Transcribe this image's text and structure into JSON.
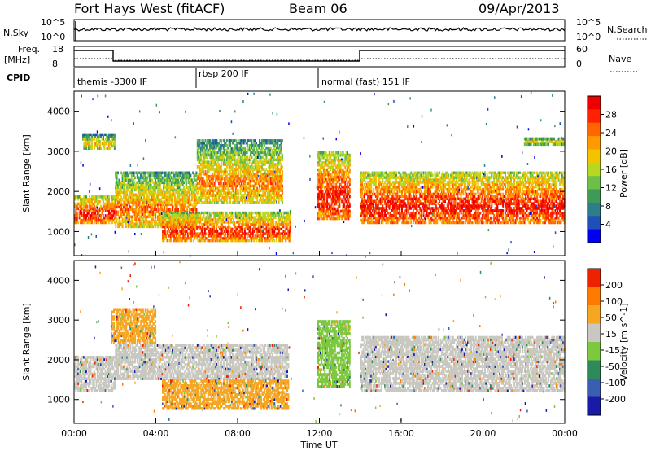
{
  "header": {
    "station": "Fort Hays West (fitACF)",
    "beam": "Beam 06",
    "date": "09/Apr/2013"
  },
  "top_panels": {
    "nsky_label": "N.Sky",
    "nsearch_label": "N.Search",
    "nsky_ticks": [
      "10^5",
      "10^0"
    ],
    "nsearch_ticks": [
      "10^5",
      "10^0"
    ],
    "freq_label": "Freq.",
    "freq_unit": "[MHz]",
    "freq_ticks": [
      "18",
      "8"
    ],
    "nave_label": "Nave",
    "nave_ticks": [
      "60",
      "0"
    ],
    "cpid_label": "CPID",
    "cpid_segments": [
      {
        "label": "themis -3300 IF",
        "start": 0.0
      },
      {
        "label": "rbsp 200 IF",
        "start": 6.0
      },
      {
        "label": "normal (fast) 151 IF",
        "start": 12.0
      }
    ]
  },
  "chart_data": [
    {
      "type": "heatmap",
      "title": "",
      "ylabel": "Slant Range [km]",
      "xlabel": "",
      "xlim": [
        0,
        24
      ],
      "ylim": [
        400,
        4500
      ],
      "yticks": [
        "1000",
        "2000",
        "3000",
        "4000"
      ],
      "colorbar": {
        "label": "Power [dB]",
        "ticks": [
          "28",
          "24",
          "20",
          "16",
          "12",
          "8",
          "4"
        ],
        "colors": [
          "#0000ee",
          "#1f4fb8",
          "#2e7d8a",
          "#3f9a55",
          "#6cc04a",
          "#b8d820",
          "#f2c400",
          "#ff9900",
          "#ff6600",
          "#ff2200",
          "#ee0000"
        ]
      },
      "bands": [
        {
          "start": 0.0,
          "end": 2.0,
          "r0": 1200,
          "r1": 1900,
          "intensity": 0.75
        },
        {
          "start": 0.4,
          "end": 2.0,
          "r0": 3050,
          "r1": 3450,
          "intensity": 0.25
        },
        {
          "start": 2.0,
          "end": 6.0,
          "r0": 1100,
          "r1": 2500,
          "intensity": 0.5
        },
        {
          "start": 6.0,
          "end": 10.2,
          "r0": 1700,
          "r1": 3300,
          "intensity": 0.45
        },
        {
          "start": 4.3,
          "end": 10.6,
          "r0": 750,
          "r1": 1500,
          "intensity": 0.7
        },
        {
          "start": 11.9,
          "end": 13.5,
          "r0": 1300,
          "r1": 3000,
          "intensity": 0.8
        },
        {
          "start": 14.0,
          "end": 24.0,
          "r0": 1200,
          "r1": 2500,
          "intensity": 0.8
        },
        {
          "start": 22.0,
          "end": 24.0,
          "r0": 3150,
          "r1": 3350,
          "intensity": 0.2
        }
      ]
    },
    {
      "type": "heatmap",
      "title": "",
      "ylabel": "Slant Range [km]",
      "xlabel": "Time UT",
      "xlim": [
        0,
        24
      ],
      "ylim": [
        400,
        4500
      ],
      "xticks": [
        "00:00",
        "04:00",
        "08:00",
        "12:00",
        "16:00",
        "20:00",
        "00:00"
      ],
      "yticks": [
        "1000",
        "2000",
        "3000",
        "4000"
      ],
      "colorbar": {
        "label": "Velocity [m s^-1]",
        "ticks": [
          "200",
          "100",
          "50",
          "15",
          "-15",
          "-50",
          "-100",
          "-200"
        ],
        "colors": [
          "#1a1aa8",
          "#3a5fb0",
          "#2e8a5a",
          "#7ec840",
          "#c8c8c0",
          "#f5a623",
          "#ff7a00",
          "#ee2200"
        ]
      },
      "bands": [
        {
          "start": 0.0,
          "end": 2.0,
          "r0": 1200,
          "r1": 2100,
          "color": "#c8c8c0"
        },
        {
          "start": 2.0,
          "end": 10.5,
          "r0": 1500,
          "r1": 2400,
          "color": "#c8c8c0"
        },
        {
          "start": 4.3,
          "end": 10.5,
          "r0": 750,
          "r1": 1500,
          "color": "#f5a623"
        },
        {
          "start": 1.8,
          "end": 4.0,
          "r0": 2400,
          "r1": 3300,
          "color": "#f5a623"
        },
        {
          "start": 11.9,
          "end": 13.5,
          "r0": 1300,
          "r1": 3000,
          "color": "#7ec840"
        },
        {
          "start": 14.0,
          "end": 24.0,
          "r0": 1200,
          "r1": 2600,
          "color": "#c8c8c0"
        }
      ]
    }
  ]
}
